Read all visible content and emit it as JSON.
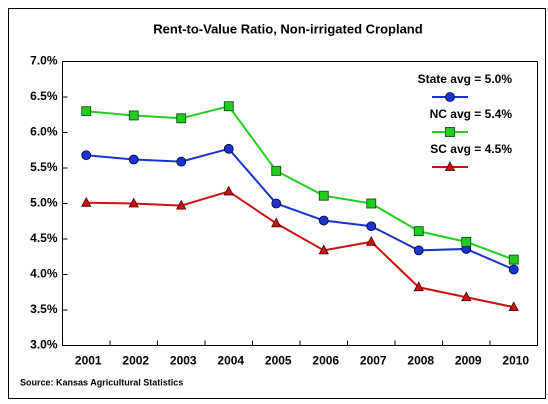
{
  "chart_data": {
    "type": "line",
    "title": "Rent-to-Value Ratio, Non-irrigated Cropland",
    "source": "Source:  Kansas Agricultural Statistics",
    "categories": [
      "2001",
      "2002",
      "2003",
      "2004",
      "2005",
      "2006",
      "2007",
      "2008",
      "2009",
      "2010"
    ],
    "series": [
      {
        "name": "State avg = 5.0%",
        "color": "#1a33cc",
        "marker": "circle",
        "values": [
          5.68,
          5.62,
          5.59,
          5.77,
          5.0,
          4.76,
          4.68,
          4.34,
          4.36,
          4.07
        ]
      },
      {
        "name": "NC avg = 5.4%",
        "color": "#22cc22",
        "marker": "square",
        "values": [
          6.3,
          6.24,
          6.2,
          6.37,
          5.46,
          5.11,
          5.0,
          4.61,
          4.46,
          4.21
        ]
      },
      {
        "name": "SC avg = 4.5%",
        "color": "#cc1111",
        "marker": "triangle",
        "values": [
          5.01,
          5.0,
          4.97,
          5.17,
          4.72,
          4.34,
          4.46,
          3.82,
          3.68,
          3.54
        ]
      }
    ],
    "ylim": [
      3,
      7
    ],
    "yticks": [
      {
        "value": 3,
        "label": "3.0%"
      },
      {
        "value": 3.5,
        "label": "3.5%"
      },
      {
        "value": 4,
        "label": "4.0%"
      },
      {
        "value": 4.5,
        "label": "4.5%"
      },
      {
        "value": 5,
        "label": "5.0%"
      },
      {
        "value": 5.5,
        "label": "5.5%"
      },
      {
        "value": 6,
        "label": "6.0%"
      },
      {
        "value": 6.5,
        "label": "6.5%"
      },
      {
        "value": 7,
        "label": "7.0%"
      }
    ],
    "grid": false,
    "legend": "upper right"
  }
}
